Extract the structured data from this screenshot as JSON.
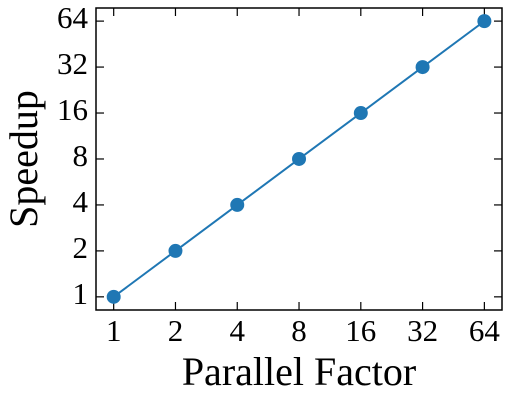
{
  "chart_data": {
    "type": "line",
    "x_label": "Parallel Factor",
    "y_label": "Speedup",
    "x": [
      1,
      2,
      4,
      8,
      16,
      32,
      64
    ],
    "series": [
      {
        "color": "#1f77b4",
        "values": [
          1,
          2,
          4,
          8,
          16,
          32,
          64
        ]
      }
    ],
    "xscale": "log",
    "yscale": "log",
    "xlim": [
      0.82,
      78
    ],
    "ylim": [
      0.82,
      78
    ],
    "xticks": [
      1,
      2,
      4,
      8,
      16,
      32,
      64
    ],
    "yticks": [
      1,
      2,
      4,
      8,
      16,
      32,
      64
    ],
    "grid": false
  }
}
